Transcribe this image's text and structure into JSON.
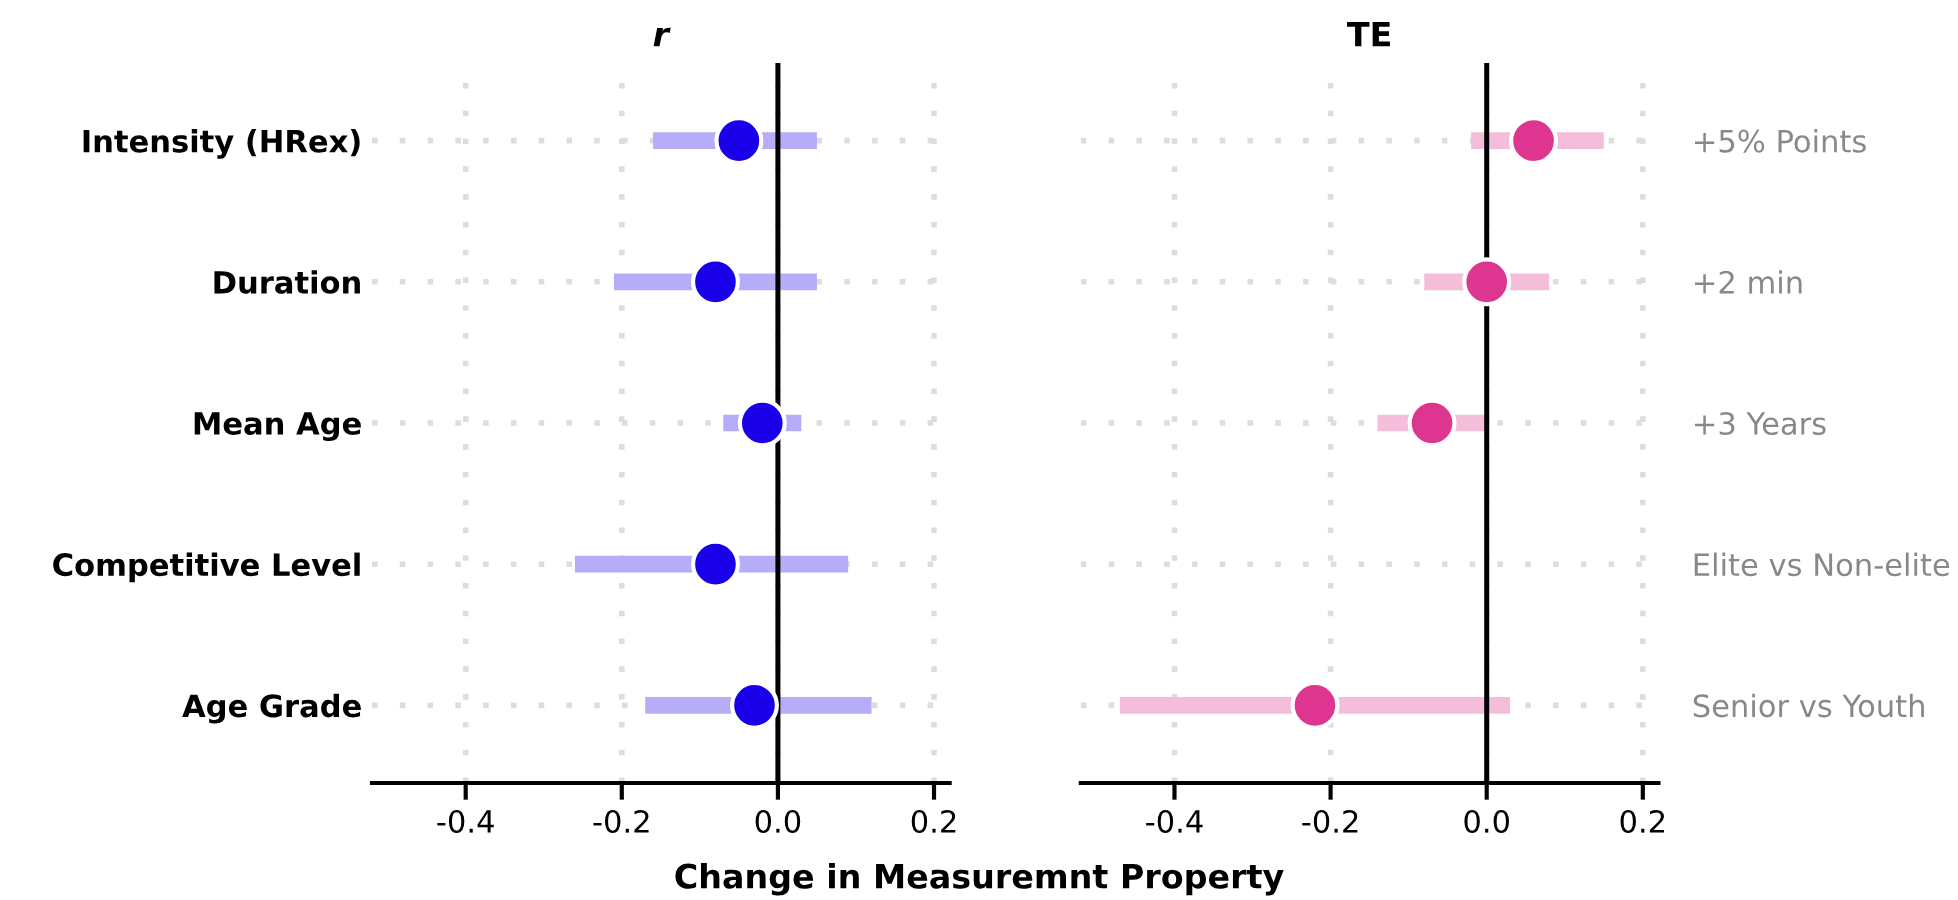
{
  "chart_data": [
    {
      "type": "scatter",
      "orientation": "horizontal",
      "title": "r",
      "xlabel": "Change in Measuremnt Property",
      "categories": [
        "Intensity (HRex)",
        "Duration",
        "Mean Age",
        "Competitive Level",
        "Age Grade"
      ],
      "series": [
        {
          "color": "#1a00e8",
          "values": [
            -0.05,
            -0.08,
            -0.02,
            -0.08,
            -0.03
          ],
          "errors": [
            [
              -0.16,
              0.05
            ],
            [
              -0.21,
              0.05
            ],
            [
              -0.07,
              0.03
            ],
            [
              -0.26,
              0.09
            ],
            [
              -0.17,
              0.12
            ]
          ]
        }
      ],
      "xlim": [
        -0.52,
        0.22
      ],
      "xticks": [
        {
          "value": -0.4,
          "label": "-0.4"
        },
        {
          "value": -0.2,
          "label": "-0.2"
        },
        {
          "value": 0,
          "label": "0.0"
        },
        {
          "value": 0.2,
          "label": "0.2"
        }
      ],
      "ref_lines": [
        {
          "axis": "x",
          "value": 0,
          "color": "#000000"
        }
      ],
      "grid": true,
      "marker": "circle"
    },
    {
      "type": "scatter",
      "orientation": "horizontal",
      "title": "TE",
      "categories": [
        "+5% Points",
        "+2 min",
        "+3 Years",
        "Elite vs Non-elite",
        "Senior vs Youth"
      ],
      "series": [
        {
          "color": "#dd3590",
          "values": [
            0.06,
            0.0,
            -0.07,
            null,
            -0.22
          ],
          "errors": [
            [
              -0.02,
              0.15
            ],
            [
              -0.08,
              0.08
            ],
            [
              -0.14,
              0.0
            ],
            null,
            [
              -0.47,
              0.03
            ]
          ]
        }
      ],
      "xlim": [
        -0.52,
        0.22
      ],
      "xticks": [
        {
          "value": -0.4,
          "label": "-0.4"
        },
        {
          "value": -0.2,
          "label": "-0.2"
        },
        {
          "value": 0,
          "label": "0.0"
        },
        {
          "value": 0.2,
          "label": "0.2"
        }
      ],
      "ref_lines": [
        {
          "axis": "x",
          "value": 0,
          "color": "#000000"
        }
      ],
      "grid": true,
      "marker": "circle"
    }
  ]
}
